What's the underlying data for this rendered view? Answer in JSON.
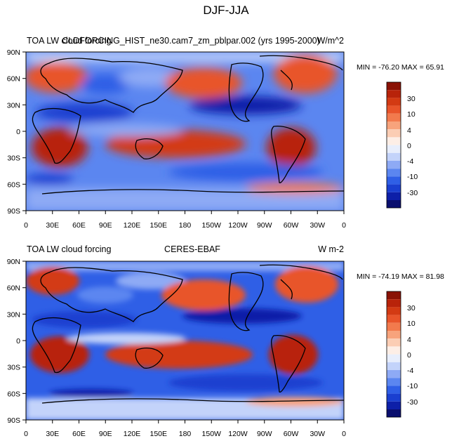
{
  "figure_title": "DJF-JJA",
  "chart_data": [
    {
      "type": "heatmap",
      "panel": "top",
      "left_title": "TOA LW cloud forcing",
      "center_title": "CLDFORCING_HIST_ne30.cam7_zm_pblpar.002 (yrs 1995-2000)",
      "units": "W/m^2",
      "min_max_text": "MIN = -76.20 MAX =  65.91",
      "min": -76.2,
      "max": 65.91,
      "y_ticks": [
        "90N",
        "60N",
        "30N",
        "0",
        "30S",
        "60S",
        "90S"
      ],
      "x_ticks": [
        "0",
        "30E",
        "60E",
        "90E",
        "120E",
        "150E",
        "180",
        "150W",
        "120W",
        "90W",
        "60W",
        "30W",
        "0"
      ],
      "colorbar_labels": [
        "30",
        "10",
        "4",
        "0",
        "-4",
        "-10",
        "-30"
      ]
    },
    {
      "type": "heatmap",
      "panel": "bottom",
      "left_title": "TOA LW cloud forcing",
      "center_title": "CERES-EBAF",
      "units": "W m-2",
      "min_max_text": "MIN = -74.19 MAX =  81.98",
      "min": -74.19,
      "max": 81.98,
      "y_ticks": [
        "90N",
        "60N",
        "30N",
        "0",
        "30S",
        "60S",
        "90S"
      ],
      "x_ticks": [
        "0",
        "30E",
        "60E",
        "90E",
        "120E",
        "150E",
        "180",
        "150W",
        "120W",
        "90W",
        "60W",
        "30W",
        "0"
      ],
      "colorbar_labels": [
        "30",
        "10",
        "4",
        "0",
        "-4",
        "-10",
        "-30"
      ]
    }
  ],
  "colors": {
    "palette": [
      "#0a0f6e",
      "#0d1fa8",
      "#1a3fd0",
      "#2f5fe6",
      "#5b86f0",
      "#8eaaf5",
      "#c3d3fa",
      "#e8eefc",
      "#fdeee6",
      "#fbcdb4",
      "#f7a37c",
      "#f27a4d",
      "#e8542a",
      "#d33a13",
      "#b8230a",
      "#8a1205"
    ]
  }
}
